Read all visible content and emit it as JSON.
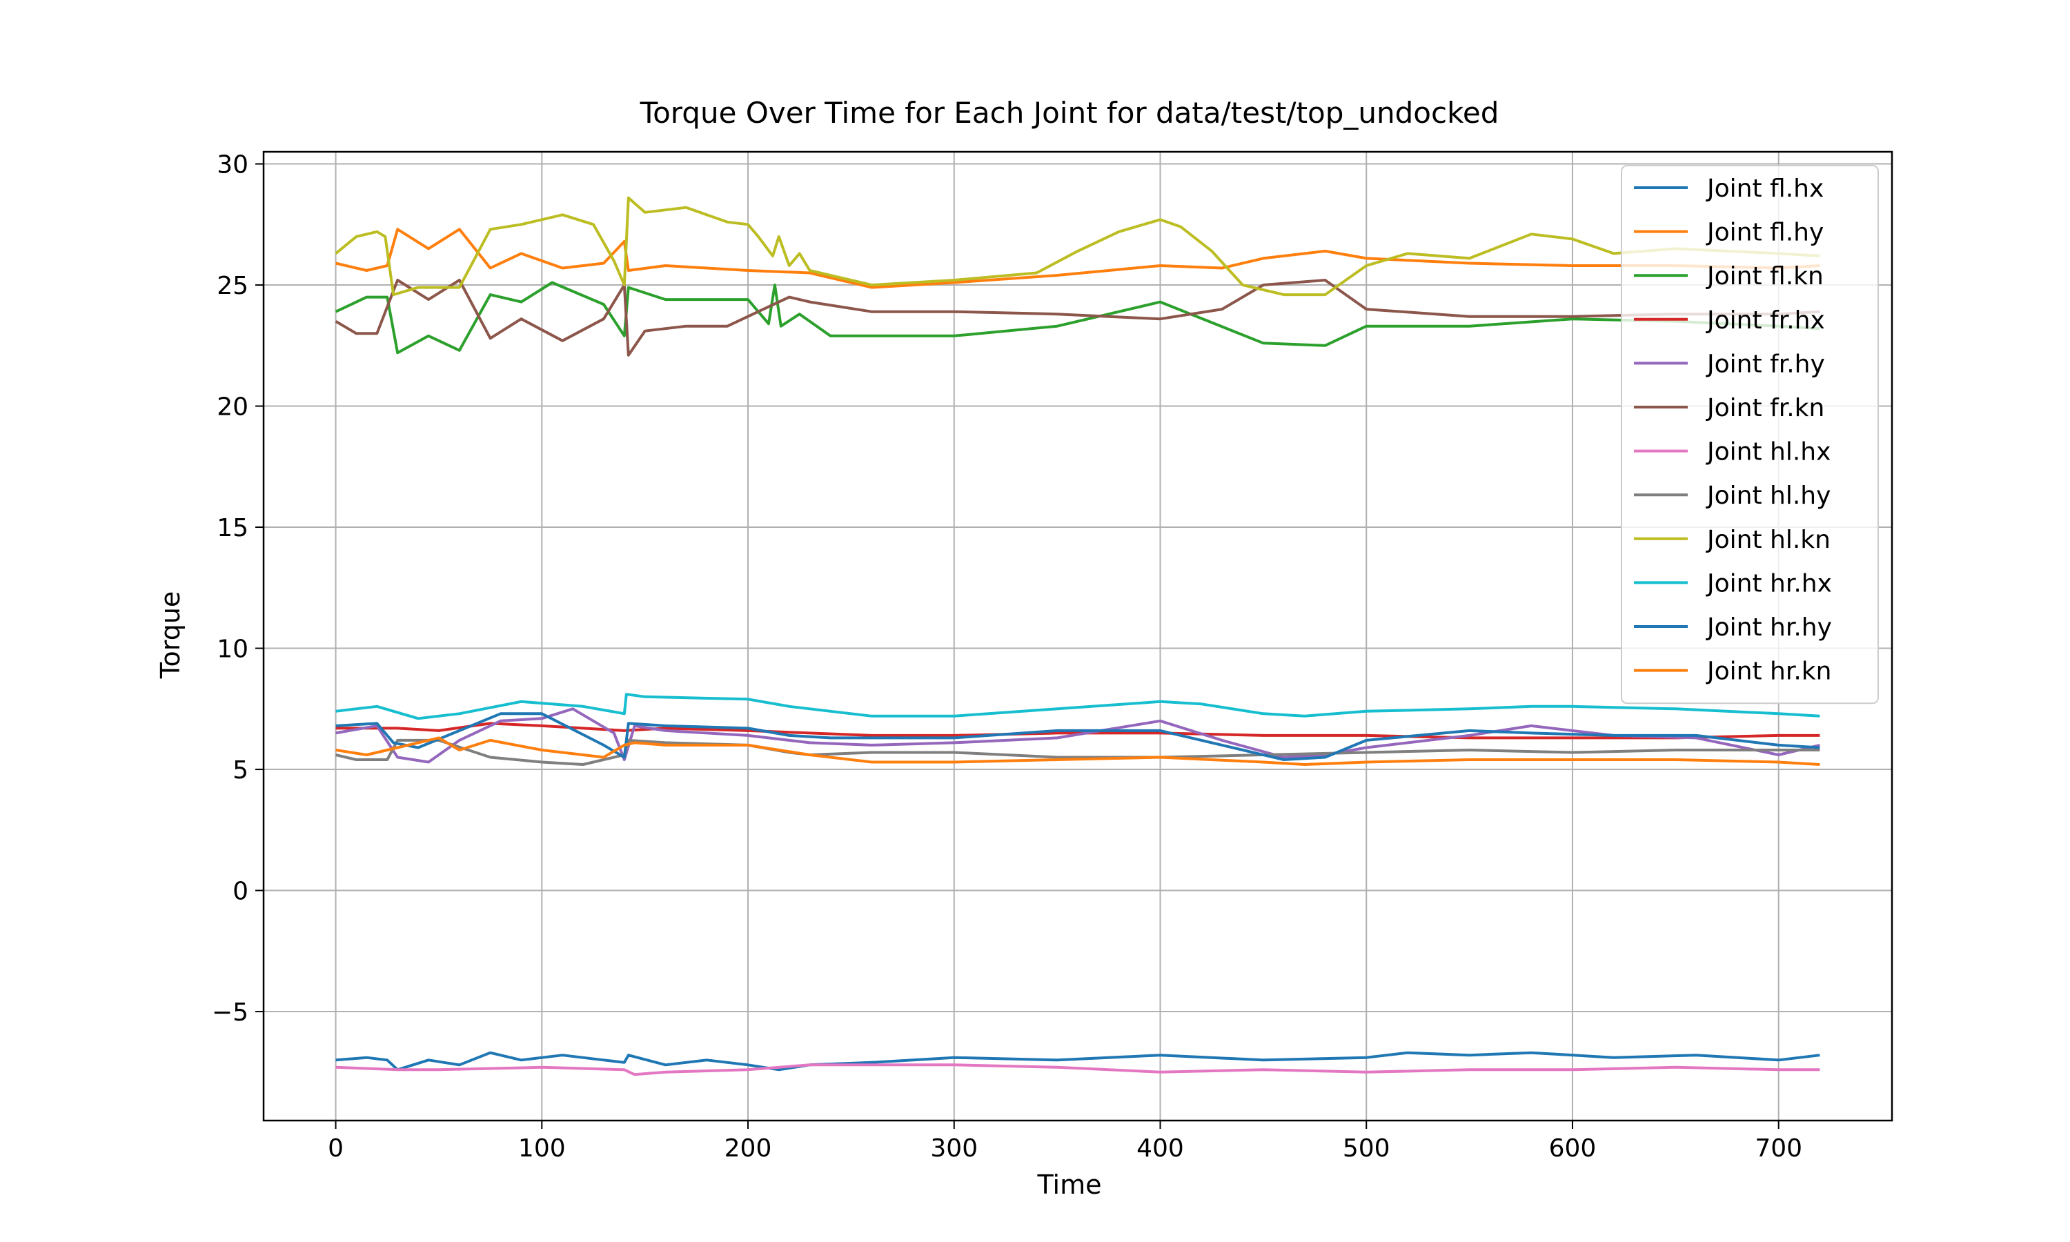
{
  "chart_data": {
    "type": "line",
    "title": "Torque Over Time for Each Joint for data/test/top_undocked",
    "xlabel": "Time",
    "ylabel": "Torque",
    "xlim": [
      -35,
      755
    ],
    "ylim": [
      -9.5,
      30.5
    ],
    "xticks": [
      0,
      100,
      200,
      300,
      400,
      500,
      600,
      700
    ],
    "yticks": [
      -5,
      0,
      5,
      10,
      15,
      20,
      25,
      30
    ],
    "xtick_labels": [
      "0",
      "100",
      "200",
      "300",
      "400",
      "500",
      "600",
      "700"
    ],
    "ytick_labels": [
      "−5",
      "0",
      "5",
      "10",
      "15",
      "20",
      "25",
      "30"
    ],
    "grid": true,
    "legend_position": "upper-right",
    "series": [
      {
        "name": "Joint fl.hx",
        "color": "#1f77b4",
        "x": [
          0,
          15,
          25,
          30,
          45,
          60,
          75,
          90,
          110,
          130,
          140,
          142,
          160,
          180,
          200,
          215,
          230,
          260,
          300,
          350,
          400,
          450,
          500,
          520,
          550,
          580,
          620,
          660,
          700,
          720
        ],
        "y": [
          -7.0,
          -6.9,
          -7.0,
          -7.4,
          -7.0,
          -7.2,
          -6.7,
          -7.0,
          -6.8,
          -7.0,
          -7.1,
          -6.8,
          -7.2,
          -7.0,
          -7.2,
          -7.4,
          -7.2,
          -7.1,
          -6.9,
          -7.0,
          -6.8,
          -7.0,
          -6.9,
          -6.7,
          -6.8,
          -6.7,
          -6.9,
          -6.8,
          -7.0,
          -6.8
        ]
      },
      {
        "name": "Joint fl.hy",
        "color": "#ff7f0e",
        "x": [
          0,
          15,
          25,
          30,
          45,
          60,
          75,
          90,
          110,
          130,
          140,
          142,
          160,
          200,
          230,
          260,
          300,
          350,
          400,
          430,
          450,
          480,
          500,
          550,
          600,
          650,
          700,
          720
        ],
        "y": [
          25.9,
          25.6,
          25.8,
          27.3,
          26.5,
          27.3,
          25.7,
          26.3,
          25.7,
          25.9,
          26.8,
          25.6,
          25.8,
          25.6,
          25.5,
          24.9,
          25.1,
          25.4,
          25.8,
          25.7,
          26.1,
          26.4,
          26.1,
          25.9,
          25.8,
          25.8,
          25.7,
          25.8
        ]
      },
      {
        "name": "Joint fl.kn",
        "color": "#2ca02c",
        "x": [
          0,
          15,
          25,
          30,
          45,
          60,
          75,
          90,
          105,
          130,
          140,
          142,
          160,
          200,
          210,
          213,
          216,
          225,
          240,
          270,
          300,
          350,
          400,
          450,
          480,
          500,
          550,
          600,
          650,
          700,
          720
        ],
        "y": [
          23.9,
          24.5,
          24.5,
          22.2,
          22.9,
          22.3,
          24.6,
          24.3,
          25.1,
          24.2,
          22.9,
          24.9,
          24.4,
          24.4,
          23.4,
          25.0,
          23.3,
          23.8,
          22.9,
          22.9,
          22.9,
          23.3,
          24.3,
          22.6,
          22.5,
          23.3,
          23.3,
          23.6,
          23.5,
          23.3,
          23.2
        ]
      },
      {
        "name": "Joint fr.hx",
        "color": "#d62728",
        "x": [
          0,
          30,
          50,
          75,
          100,
          140,
          160,
          200,
          230,
          260,
          300,
          350,
          400,
          450,
          500,
          550,
          600,
          650,
          700,
          720
        ],
        "y": [
          6.7,
          6.7,
          6.6,
          6.9,
          6.8,
          6.6,
          6.7,
          6.6,
          6.5,
          6.4,
          6.4,
          6.5,
          6.5,
          6.4,
          6.4,
          6.3,
          6.3,
          6.3,
          6.4,
          6.4
        ]
      },
      {
        "name": "Joint fr.hy",
        "color": "#9467bd",
        "x": [
          0,
          20,
          30,
          45,
          60,
          80,
          100,
          115,
          135,
          140,
          145,
          160,
          200,
          230,
          260,
          300,
          350,
          400,
          430,
          460,
          480,
          500,
          550,
          580,
          620,
          660,
          700,
          720
        ],
        "y": [
          6.5,
          6.8,
          5.5,
          5.3,
          6.2,
          7.0,
          7.1,
          7.5,
          6.5,
          5.4,
          6.8,
          6.6,
          6.4,
          6.1,
          6.0,
          6.1,
          6.3,
          7.0,
          6.2,
          5.5,
          5.6,
          5.9,
          6.4,
          6.8,
          6.4,
          6.3,
          5.6,
          6.0
        ]
      },
      {
        "name": "Joint fr.kn",
        "color": "#8c564b",
        "x": [
          0,
          10,
          20,
          30,
          45,
          60,
          75,
          90,
          110,
          130,
          140,
          142,
          150,
          170,
          190,
          210,
          220,
          230,
          260,
          300,
          350,
          400,
          430,
          450,
          480,
          500,
          550,
          600,
          650,
          700,
          720
        ],
        "y": [
          23.5,
          23.0,
          23.0,
          25.2,
          24.4,
          25.2,
          22.8,
          23.6,
          22.7,
          23.6,
          25.0,
          22.1,
          23.1,
          23.3,
          23.3,
          24.1,
          24.5,
          24.3,
          23.9,
          23.9,
          23.8,
          23.6,
          24.0,
          25.0,
          25.2,
          24.0,
          23.7,
          23.7,
          23.8,
          23.8,
          23.9
        ]
      },
      {
        "name": "Joint hl.hx",
        "color": "#e377c2",
        "x": [
          0,
          30,
          50,
          100,
          140,
          145,
          160,
          200,
          230,
          260,
          300,
          350,
          400,
          450,
          500,
          550,
          600,
          650,
          700,
          720
        ],
        "y": [
          -7.3,
          -7.4,
          -7.4,
          -7.3,
          -7.4,
          -7.6,
          -7.5,
          -7.4,
          -7.2,
          -7.2,
          -7.2,
          -7.3,
          -7.5,
          -7.4,
          -7.5,
          -7.4,
          -7.4,
          -7.3,
          -7.4,
          -7.4
        ]
      },
      {
        "name": "Joint hl.hy",
        "color": "#7f7f7f",
        "x": [
          0,
          10,
          25,
          30,
          50,
          75,
          100,
          120,
          140,
          142,
          160,
          200,
          220,
          230,
          260,
          300,
          350,
          400,
          450,
          500,
          550,
          600,
          650,
          700,
          720
        ],
        "y": [
          5.6,
          5.4,
          5.4,
          6.2,
          6.2,
          5.5,
          5.3,
          5.2,
          5.6,
          6.2,
          6.1,
          6.0,
          5.7,
          5.6,
          5.7,
          5.7,
          5.5,
          5.5,
          5.6,
          5.7,
          5.8,
          5.7,
          5.8,
          5.8,
          5.8
        ]
      },
      {
        "name": "Joint hl.kn",
        "color": "#bcbd22",
        "x": [
          0,
          10,
          20,
          24,
          28,
          40,
          60,
          75,
          90,
          110,
          125,
          135,
          140,
          142,
          150,
          170,
          190,
          200,
          205,
          212,
          215,
          220,
          225,
          230,
          260,
          300,
          340,
          360,
          380,
          400,
          410,
          425,
          440,
          460,
          480,
          500,
          520,
          550,
          580,
          600,
          620,
          650,
          700,
          720
        ],
        "y": [
          26.3,
          27.0,
          27.2,
          27.0,
          24.6,
          24.9,
          24.9,
          27.3,
          27.5,
          27.9,
          27.5,
          26.0,
          25.0,
          28.6,
          28.0,
          28.2,
          27.6,
          27.5,
          27.0,
          26.2,
          27.0,
          25.8,
          26.3,
          25.6,
          25.0,
          25.2,
          25.5,
          26.4,
          27.2,
          27.7,
          27.4,
          26.4,
          25.0,
          24.6,
          24.6,
          25.8,
          26.3,
          26.1,
          27.1,
          26.9,
          26.3,
          26.5,
          26.3,
          26.2
        ]
      },
      {
        "name": "Joint hr.hx",
        "color": "#17becf",
        "x": [
          0,
          20,
          40,
          60,
          90,
          120,
          140,
          141,
          150,
          200,
          220,
          240,
          260,
          300,
          350,
          400,
          420,
          450,
          470,
          500,
          550,
          580,
          600,
          650,
          700,
          720
        ],
        "y": [
          7.4,
          7.6,
          7.1,
          7.3,
          7.8,
          7.6,
          7.3,
          8.1,
          8.0,
          7.9,
          7.6,
          7.4,
          7.2,
          7.2,
          7.5,
          7.8,
          7.7,
          7.3,
          7.2,
          7.4,
          7.5,
          7.6,
          7.6,
          7.5,
          7.3,
          7.2
        ]
      },
      {
        "name": "Joint hr.hy",
        "color": "#1f77b4",
        "x": [
          0,
          20,
          28,
          40,
          60,
          80,
          100,
          130,
          140,
          142,
          160,
          200,
          220,
          240,
          260,
          300,
          350,
          400,
          430,
          460,
          480,
          500,
          550,
          580,
          620,
          660,
          700,
          720
        ],
        "y": [
          6.8,
          6.9,
          6.1,
          5.9,
          6.6,
          7.3,
          7.3,
          6.0,
          5.5,
          6.9,
          6.8,
          6.7,
          6.4,
          6.3,
          6.3,
          6.3,
          6.6,
          6.6,
          6.0,
          5.4,
          5.5,
          6.2,
          6.6,
          6.5,
          6.4,
          6.4,
          6.0,
          5.9
        ]
      },
      {
        "name": "Joint hr.kn",
        "color": "#ff7f0e",
        "x": [
          0,
          15,
          30,
          50,
          60,
          75,
          100,
          130,
          140,
          145,
          160,
          200,
          230,
          260,
          300,
          350,
          400,
          450,
          470,
          500,
          550,
          600,
          650,
          700,
          720
        ],
        "y": [
          5.8,
          5.6,
          5.9,
          6.3,
          5.8,
          6.2,
          5.8,
          5.5,
          6.0,
          6.1,
          6.0,
          6.0,
          5.6,
          5.3,
          5.3,
          5.4,
          5.5,
          5.3,
          5.2,
          5.3,
          5.4,
          5.4,
          5.4,
          5.3,
          5.2
        ]
      }
    ]
  }
}
